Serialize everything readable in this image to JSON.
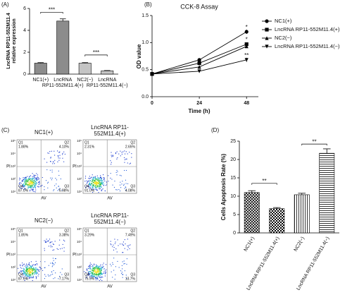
{
  "panel_labels": [
    "(A)",
    "(B)",
    "(C)",
    "(D)"
  ],
  "chart_data": [
    {
      "type": "bar",
      "y_label": [
        "LncRNA RP11-552M11.4",
        "relative expression"
      ],
      "categories": [
        "NC1(+)",
        "LncRNA RP11-552M11.4(+)",
        "NC2(−)",
        "LncRNA RP11-552M11.4(−)"
      ],
      "values": [
        1.0,
        4.85,
        1.0,
        0.3
      ],
      "errors": [
        0.05,
        0.2,
        0.05,
        0.03
      ],
      "colors": [
        "#8c8c8c",
        "#8c8c8c",
        "#c4c4c4",
        "#c4c4c4"
      ],
      "ylim": [
        0,
        6
      ],
      "yticks": [
        0,
        2,
        4,
        6
      ],
      "annotations": [
        "***",
        "***"
      ]
    },
    {
      "type": "line",
      "title": "CCK-8 Assay",
      "x_label": "Time (h)",
      "y_label": "OD value",
      "x": [
        0,
        24,
        48
      ],
      "xlim": [
        0,
        54
      ],
      "xticks": [
        0,
        24,
        48
      ],
      "ylim": [
        0,
        1.5
      ],
      "yticks": [
        {
          "value": 0,
          "label": "0.0"
        },
        {
          "value": 0.5,
          "label": "0.5"
        },
        {
          "value": 1,
          "label": "1.0"
        },
        {
          "value": 1.5,
          "label": "1.5"
        }
      ],
      "legend": "right",
      "series": [
        {
          "name": "NC1(+)",
          "color": "#000000",
          "marker": "circle",
          "values": [
            0.42,
            0.68,
            1.2
          ],
          "errors": [
            0.02,
            0.03,
            0.04
          ]
        },
        {
          "name": "LncRNA RP11-552M11.4(+)",
          "color": "#000000",
          "marker": "square",
          "values": [
            0.42,
            0.62,
            0.97
          ],
          "errors": [
            0.02,
            0.03,
            0.03
          ]
        },
        {
          "name": "NC2(−)",
          "color": "#000000",
          "marker": "triangle-up",
          "values": [
            0.42,
            0.55,
            0.93
          ],
          "errors": [
            0.02,
            0.03,
            0.03
          ]
        },
        {
          "name": "LncRNA RP11-552M11.4(−)",
          "color": "#000000",
          "marker": "triangle-down",
          "values": [
            0.42,
            0.47,
            0.68
          ],
          "errors": [
            0.02,
            0.02,
            0.04
          ]
        }
      ],
      "annotations": [
        "*",
        "*",
        "**"
      ]
    },
    {
      "type": "bar",
      "y_label": "Cells Apoptosis Rate (%)",
      "categories": [
        "NC1(+)",
        "LncRNA RP11-552M11.4(+)",
        "NC2(−)",
        "LncRNA RP11-552M11.4(−)"
      ],
      "values": [
        11.0,
        6.6,
        10.4,
        21.7
      ],
      "errors": [
        0.5,
        0.3,
        0.4,
        1.2
      ],
      "patterns": [
        "crosshatch",
        "checker",
        "vertical",
        "horizontal"
      ],
      "ylim": [
        0,
        25
      ],
      "yticks": [
        0,
        5,
        10,
        15,
        20,
        25
      ],
      "annotations": [
        "**",
        "**"
      ]
    }
  ],
  "flow_cytometry": {
    "x_label": "AV",
    "y_label": "PI",
    "ticks": [
      "10¹",
      "10²",
      "10³",
      "10⁴",
      "10⁵"
    ],
    "panels": [
      {
        "title": "NC1(+)",
        "quadrants": [
          {
            "label": "Q1",
            "value": "1.88%"
          },
          {
            "label": "Q2",
            "value": "4.10%"
          },
          {
            "label": "Q3",
            "value": "6.98%"
          },
          {
            "label": "Q4",
            "value": "87.0%"
          }
        ]
      },
      {
        "title": "LncRNA RP11-552M11.4(+)",
        "quadrants": [
          {
            "label": "Q1",
            "value": "2.31%"
          },
          {
            "label": "Q2",
            "value": "2.65%"
          },
          {
            "label": "Q3",
            "value": "4.08%"
          },
          {
            "label": "Q4",
            "value": "91.0%"
          }
        ]
      },
      {
        "title": "NC2(−)",
        "quadrants": [
          {
            "label": "Q1",
            "value": "1.85%"
          },
          {
            "label": "Q2",
            "value": "3.38%"
          },
          {
            "label": "Q3",
            "value": "7.17%"
          },
          {
            "label": "Q4",
            "value": "87.6%"
          }
        ]
      },
      {
        "title": "LncRNA RP11-552M11.4(−)",
        "quadrants": [
          {
            "label": "Q1",
            "value": "3.29%"
          },
          {
            "label": "Q2",
            "value": "7.49%"
          },
          {
            "label": "Q3",
            "value": "13.7%"
          },
          {
            "label": "Q4",
            "value": "75.5%"
          }
        ]
      }
    ]
  }
}
